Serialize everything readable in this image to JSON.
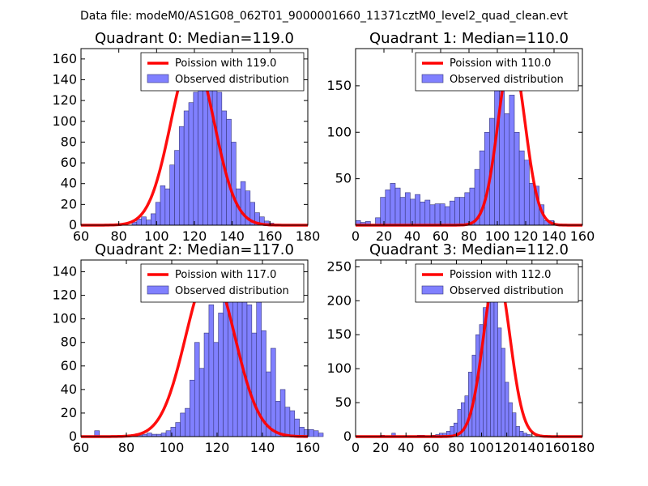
{
  "figure": {
    "suptitle": "Data file: modeM0/AS1G08_062T01_9000001660_11371cztM0_level2_quad_clean.evt"
  },
  "chart_data": [
    {
      "type": "bar",
      "title": "Quadrant 0: Median=119.0",
      "xlim": [
        60,
        180
      ],
      "ylim": [
        0,
        170
      ],
      "xticks": [
        "60",
        "80",
        "100",
        "120",
        "140",
        "160",
        "180"
      ],
      "yticks": [
        "0",
        "20",
        "40",
        "60",
        "80",
        "100",
        "120",
        "140",
        "160"
      ],
      "legend": {
        "line": "Poission with 119.0",
        "bars": "Observed distribution",
        "position": "upper right"
      },
      "bins": {
        "start": 87,
        "width": 2.5,
        "values": [
          3,
          6,
          8,
          5,
          11,
          22,
          38,
          35,
          58,
          72,
          95,
          110,
          118,
          128,
          140,
          132,
          138,
          165,
          128,
          110,
          102,
          80,
          35,
          42,
          33,
          22,
          12,
          8,
          4,
          2,
          1
        ]
      },
      "poisson_mean": 119,
      "poisson_peak": 163,
      "poisson_sigma": 11.5
    },
    {
      "type": "bar",
      "title": "Quadrant 1: Median=110.0",
      "xlim": [
        0,
        160
      ],
      "ylim": [
        0,
        190
      ],
      "xticks": [
        "0",
        "20",
        "40",
        "60",
        "80",
        "100",
        "120",
        "140",
        "160"
      ],
      "yticks": [
        "50",
        "100",
        "150"
      ],
      "legend": {
        "line": "Poission with 110.0",
        "bars": "Observed distribution",
        "position": "upper right"
      },
      "bins": {
        "start": 0,
        "width": 3.5,
        "values": [
          5,
          3,
          4,
          1,
          8,
          30,
          38,
          45,
          40,
          30,
          35,
          28,
          33,
          25,
          27,
          22,
          23,
          23,
          20,
          26,
          30,
          30,
          35,
          40,
          60,
          80,
          100,
          115,
          175,
          180,
          120,
          140,
          100,
          80,
          70,
          45,
          42,
          22,
          5,
          5
        ]
      },
      "poisson_mean": 110,
      "poisson_peak": 183,
      "poisson_sigma": 9.5
    },
    {
      "type": "bar",
      "title": "Quadrant 2: Median=117.0",
      "xlim": [
        60,
        160
      ],
      "ylim": [
        0,
        150
      ],
      "xticks": [
        "60",
        "80",
        "100",
        "120",
        "140",
        "160"
      ],
      "yticks": [
        "0",
        "20",
        "40",
        "60",
        "80",
        "100",
        "120",
        "140"
      ],
      "legend": {
        "line": "Poission with 117.0",
        "bars": "Observed distribution",
        "position": "upper right"
      },
      "bins": {
        "start": 66,
        "width": 2.1,
        "values": [
          5,
          0,
          0,
          0,
          0,
          0,
          0,
          0,
          1,
          1,
          2,
          3,
          2,
          2,
          3,
          5,
          8,
          12,
          20,
          24,
          48,
          80,
          58,
          88,
          112,
          80,
          105,
          115,
          132,
          140,
          120,
          135,
          112,
          88,
          118,
          90,
          55,
          75,
          30,
          40,
          25,
          22,
          15,
          8,
          6,
          6,
          5,
          3
        ]
      },
      "poisson_mean": 117,
      "poisson_peak": 141,
      "poisson_sigma": 10.8
    },
    {
      "type": "bar",
      "title": "Quadrant 3: Median=112.0",
      "xlim": [
        0,
        180
      ],
      "ylim": [
        0,
        260
      ],
      "xticks": [
        "0",
        "20",
        "40",
        "60",
        "80",
        "100",
        "120",
        "140",
        "160",
        "180"
      ],
      "yticks": [
        "0",
        "50",
        "100",
        "150",
        "200",
        "250"
      ],
      "legend": {
        "line": "Poission with 112.0",
        "bars": "Observed distribution",
        "position": "upper right"
      },
      "bins": {
        "start": 20,
        "width": 2.9,
        "values": [
          2,
          0,
          0,
          5,
          0,
          0,
          1,
          1,
          1,
          1,
          2,
          2,
          1,
          1,
          2,
          3,
          5,
          5,
          8,
          15,
          20,
          40,
          50,
          60,
          95,
          120,
          150,
          165,
          190,
          225,
          245,
          200,
          160,
          130,
          80,
          50,
          35,
          15,
          8,
          5,
          3
        ]
      },
      "poisson_mean": 112,
      "poisson_peak": 243,
      "poisson_sigma": 10.5
    }
  ]
}
